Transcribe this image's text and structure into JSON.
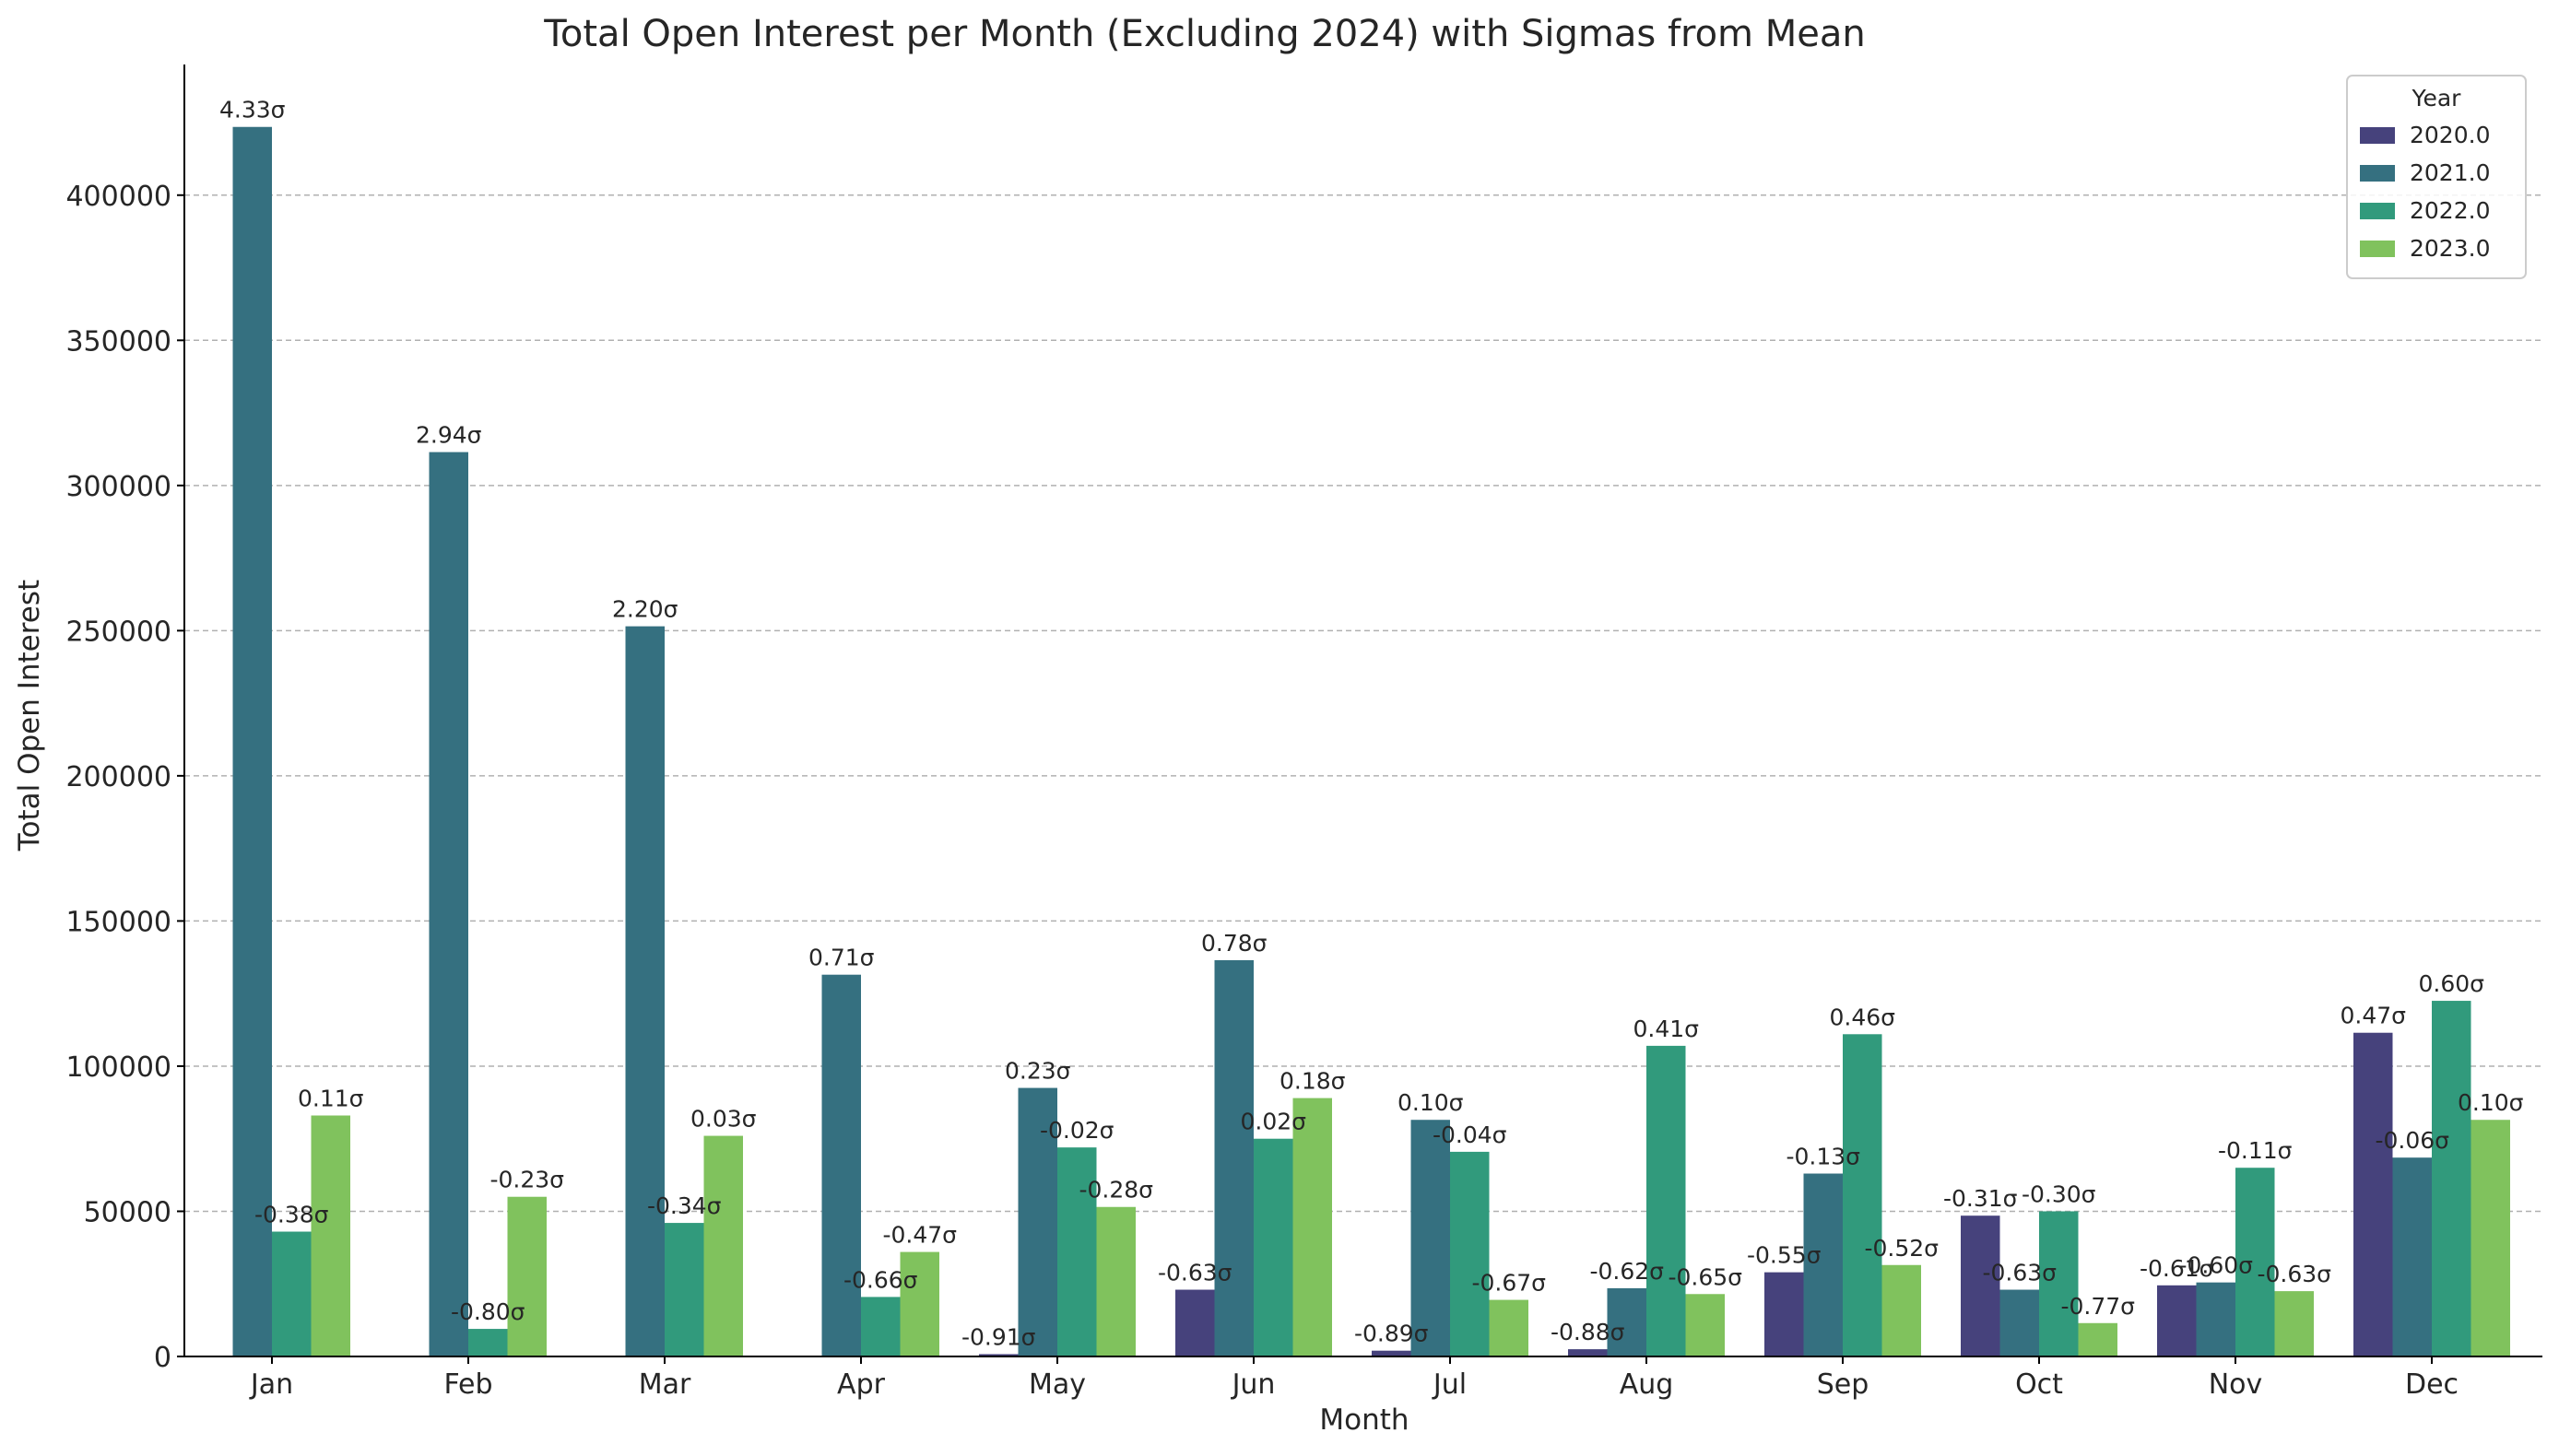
{
  "chart_data": {
    "type": "bar",
    "title": "Total Open Interest per Month (Excluding 2024) with Sigmas from Mean",
    "xlabel": "Month",
    "ylabel": "Total Open Interest",
    "ylim": [
      0,
      445000
    ],
    "yticks": [
      0,
      50000,
      100000,
      150000,
      200000,
      250000,
      300000,
      350000,
      400000
    ],
    "ytick_labels": [
      "0",
      "50000",
      "100000",
      "150000",
      "200000",
      "250000",
      "300000",
      "350000",
      "400000"
    ],
    "grid": "y-dashed",
    "legend_title": "Year",
    "legend_position": "top-right",
    "categories": [
      "Jan",
      "Feb",
      "Mar",
      "Apr",
      "May",
      "Jun",
      "Jul",
      "Aug",
      "Sep",
      "Oct",
      "Nov",
      "Dec"
    ],
    "series": [
      {
        "name": "2020.0",
        "color": "#46427c",
        "values": [
          null,
          null,
          null,
          null,
          800,
          23000,
          2000,
          2500,
          29000,
          48500,
          24500,
          111500
        ],
        "labels": [
          "",
          "",
          "",
          "",
          "-0.91σ",
          "-0.63σ",
          "-0.89σ",
          "-0.88σ",
          "-0.55σ",
          "-0.31σ",
          "-0.61σ",
          "0.47σ"
        ]
      },
      {
        "name": "2021.0",
        "color": "#357080",
        "values": [
          423500,
          311500,
          251500,
          131500,
          92500,
          136500,
          81500,
          23500,
          63000,
          23000,
          25500,
          68500
        ],
        "labels": [
          "4.33σ",
          "2.94σ",
          "2.20σ",
          "0.71σ",
          "0.23σ",
          "0.78σ",
          "0.10σ",
          "-0.62σ",
          "-0.13σ",
          "-0.63σ",
          "-0.60σ",
          "-0.06σ"
        ]
      },
      {
        "name": "2022.0",
        "color": "#319a7c",
        "values": [
          43000,
          9500,
          46000,
          20500,
          72000,
          75000,
          70500,
          107000,
          111000,
          50000,
          65000,
          122500
        ],
        "labels": [
          "-0.38σ",
          "-0.80σ",
          "-0.34σ",
          "-0.66σ",
          "-0.02σ",
          "0.02σ",
          "-0.04σ",
          "0.41σ",
          "0.46σ",
          "-0.30σ",
          "-0.11σ",
          "0.60σ"
        ]
      },
      {
        "name": "2023.0",
        "color": "#80c25d",
        "values": [
          83000,
          55000,
          76000,
          36000,
          51500,
          89000,
          19500,
          21500,
          31500,
          11500,
          22500,
          81500
        ],
        "labels": [
          "0.11σ",
          "-0.23σ",
          "0.03σ",
          "-0.47σ",
          "-0.28σ",
          "0.18σ",
          "-0.67σ",
          "-0.65σ",
          "-0.52σ",
          "-0.77σ",
          "-0.63σ",
          "0.10σ"
        ]
      }
    ]
  }
}
